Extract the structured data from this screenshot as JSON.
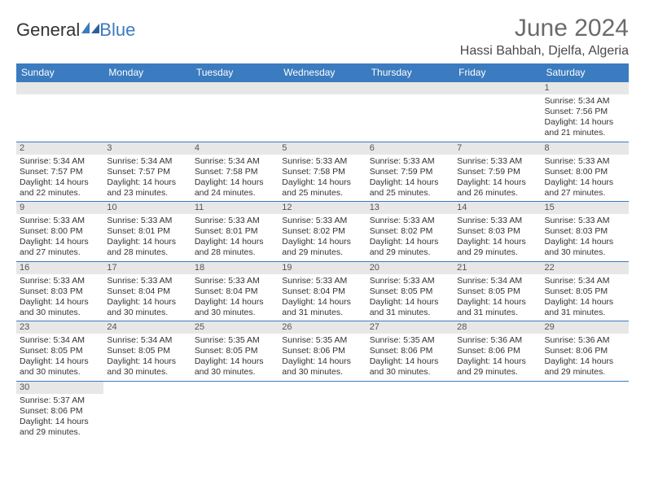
{
  "brand": {
    "part1": "General",
    "part2": "Blue"
  },
  "title": "June 2024",
  "location": "Hassi Bahbah, Djelfa, Algeria",
  "colors": {
    "header_bg": "#3b7bbf",
    "header_fg": "#ffffff",
    "daynum_bg": "#e7e7e7",
    "text": "#333333",
    "title": "#6b6b6b",
    "row_border": "#3b7bbf"
  },
  "weekdays": [
    "Sunday",
    "Monday",
    "Tuesday",
    "Wednesday",
    "Thursday",
    "Friday",
    "Saturday"
  ],
  "weeks": [
    [
      {
        "day": "",
        "sunrise": "",
        "sunset": "",
        "daylight1": "",
        "daylight2": ""
      },
      {
        "day": "",
        "sunrise": "",
        "sunset": "",
        "daylight1": "",
        "daylight2": ""
      },
      {
        "day": "",
        "sunrise": "",
        "sunset": "",
        "daylight1": "",
        "daylight2": ""
      },
      {
        "day": "",
        "sunrise": "",
        "sunset": "",
        "daylight1": "",
        "daylight2": ""
      },
      {
        "day": "",
        "sunrise": "",
        "sunset": "",
        "daylight1": "",
        "daylight2": ""
      },
      {
        "day": "",
        "sunrise": "",
        "sunset": "",
        "daylight1": "",
        "daylight2": ""
      },
      {
        "day": "1",
        "sunrise": "Sunrise: 5:34 AM",
        "sunset": "Sunset: 7:56 PM",
        "daylight1": "Daylight: 14 hours",
        "daylight2": "and 21 minutes."
      }
    ],
    [
      {
        "day": "2",
        "sunrise": "Sunrise: 5:34 AM",
        "sunset": "Sunset: 7:57 PM",
        "daylight1": "Daylight: 14 hours",
        "daylight2": "and 22 minutes."
      },
      {
        "day": "3",
        "sunrise": "Sunrise: 5:34 AM",
        "sunset": "Sunset: 7:57 PM",
        "daylight1": "Daylight: 14 hours",
        "daylight2": "and 23 minutes."
      },
      {
        "day": "4",
        "sunrise": "Sunrise: 5:34 AM",
        "sunset": "Sunset: 7:58 PM",
        "daylight1": "Daylight: 14 hours",
        "daylight2": "and 24 minutes."
      },
      {
        "day": "5",
        "sunrise": "Sunrise: 5:33 AM",
        "sunset": "Sunset: 7:58 PM",
        "daylight1": "Daylight: 14 hours",
        "daylight2": "and 25 minutes."
      },
      {
        "day": "6",
        "sunrise": "Sunrise: 5:33 AM",
        "sunset": "Sunset: 7:59 PM",
        "daylight1": "Daylight: 14 hours",
        "daylight2": "and 25 minutes."
      },
      {
        "day": "7",
        "sunrise": "Sunrise: 5:33 AM",
        "sunset": "Sunset: 7:59 PM",
        "daylight1": "Daylight: 14 hours",
        "daylight2": "and 26 minutes."
      },
      {
        "day": "8",
        "sunrise": "Sunrise: 5:33 AM",
        "sunset": "Sunset: 8:00 PM",
        "daylight1": "Daylight: 14 hours",
        "daylight2": "and 27 minutes."
      }
    ],
    [
      {
        "day": "9",
        "sunrise": "Sunrise: 5:33 AM",
        "sunset": "Sunset: 8:00 PM",
        "daylight1": "Daylight: 14 hours",
        "daylight2": "and 27 minutes."
      },
      {
        "day": "10",
        "sunrise": "Sunrise: 5:33 AM",
        "sunset": "Sunset: 8:01 PM",
        "daylight1": "Daylight: 14 hours",
        "daylight2": "and 28 minutes."
      },
      {
        "day": "11",
        "sunrise": "Sunrise: 5:33 AM",
        "sunset": "Sunset: 8:01 PM",
        "daylight1": "Daylight: 14 hours",
        "daylight2": "and 28 minutes."
      },
      {
        "day": "12",
        "sunrise": "Sunrise: 5:33 AM",
        "sunset": "Sunset: 8:02 PM",
        "daylight1": "Daylight: 14 hours",
        "daylight2": "and 29 minutes."
      },
      {
        "day": "13",
        "sunrise": "Sunrise: 5:33 AM",
        "sunset": "Sunset: 8:02 PM",
        "daylight1": "Daylight: 14 hours",
        "daylight2": "and 29 minutes."
      },
      {
        "day": "14",
        "sunrise": "Sunrise: 5:33 AM",
        "sunset": "Sunset: 8:03 PM",
        "daylight1": "Daylight: 14 hours",
        "daylight2": "and 29 minutes."
      },
      {
        "day": "15",
        "sunrise": "Sunrise: 5:33 AM",
        "sunset": "Sunset: 8:03 PM",
        "daylight1": "Daylight: 14 hours",
        "daylight2": "and 30 minutes."
      }
    ],
    [
      {
        "day": "16",
        "sunrise": "Sunrise: 5:33 AM",
        "sunset": "Sunset: 8:03 PM",
        "daylight1": "Daylight: 14 hours",
        "daylight2": "and 30 minutes."
      },
      {
        "day": "17",
        "sunrise": "Sunrise: 5:33 AM",
        "sunset": "Sunset: 8:04 PM",
        "daylight1": "Daylight: 14 hours",
        "daylight2": "and 30 minutes."
      },
      {
        "day": "18",
        "sunrise": "Sunrise: 5:33 AM",
        "sunset": "Sunset: 8:04 PM",
        "daylight1": "Daylight: 14 hours",
        "daylight2": "and 30 minutes."
      },
      {
        "day": "19",
        "sunrise": "Sunrise: 5:33 AM",
        "sunset": "Sunset: 8:04 PM",
        "daylight1": "Daylight: 14 hours",
        "daylight2": "and 31 minutes."
      },
      {
        "day": "20",
        "sunrise": "Sunrise: 5:33 AM",
        "sunset": "Sunset: 8:05 PM",
        "daylight1": "Daylight: 14 hours",
        "daylight2": "and 31 minutes."
      },
      {
        "day": "21",
        "sunrise": "Sunrise: 5:34 AM",
        "sunset": "Sunset: 8:05 PM",
        "daylight1": "Daylight: 14 hours",
        "daylight2": "and 31 minutes."
      },
      {
        "day": "22",
        "sunrise": "Sunrise: 5:34 AM",
        "sunset": "Sunset: 8:05 PM",
        "daylight1": "Daylight: 14 hours",
        "daylight2": "and 31 minutes."
      }
    ],
    [
      {
        "day": "23",
        "sunrise": "Sunrise: 5:34 AM",
        "sunset": "Sunset: 8:05 PM",
        "daylight1": "Daylight: 14 hours",
        "daylight2": "and 30 minutes."
      },
      {
        "day": "24",
        "sunrise": "Sunrise: 5:34 AM",
        "sunset": "Sunset: 8:05 PM",
        "daylight1": "Daylight: 14 hours",
        "daylight2": "and 30 minutes."
      },
      {
        "day": "25",
        "sunrise": "Sunrise: 5:35 AM",
        "sunset": "Sunset: 8:05 PM",
        "daylight1": "Daylight: 14 hours",
        "daylight2": "and 30 minutes."
      },
      {
        "day": "26",
        "sunrise": "Sunrise: 5:35 AM",
        "sunset": "Sunset: 8:06 PM",
        "daylight1": "Daylight: 14 hours",
        "daylight2": "and 30 minutes."
      },
      {
        "day": "27",
        "sunrise": "Sunrise: 5:35 AM",
        "sunset": "Sunset: 8:06 PM",
        "daylight1": "Daylight: 14 hours",
        "daylight2": "and 30 minutes."
      },
      {
        "day": "28",
        "sunrise": "Sunrise: 5:36 AM",
        "sunset": "Sunset: 8:06 PM",
        "daylight1": "Daylight: 14 hours",
        "daylight2": "and 29 minutes."
      },
      {
        "day": "29",
        "sunrise": "Sunrise: 5:36 AM",
        "sunset": "Sunset: 8:06 PM",
        "daylight1": "Daylight: 14 hours",
        "daylight2": "and 29 minutes."
      }
    ],
    [
      {
        "day": "30",
        "sunrise": "Sunrise: 5:37 AM",
        "sunset": "Sunset: 8:06 PM",
        "daylight1": "Daylight: 14 hours",
        "daylight2": "and 29 minutes."
      },
      {
        "day": "",
        "sunrise": "",
        "sunset": "",
        "daylight1": "",
        "daylight2": ""
      },
      {
        "day": "",
        "sunrise": "",
        "sunset": "",
        "daylight1": "",
        "daylight2": ""
      },
      {
        "day": "",
        "sunrise": "",
        "sunset": "",
        "daylight1": "",
        "daylight2": ""
      },
      {
        "day": "",
        "sunrise": "",
        "sunset": "",
        "daylight1": "",
        "daylight2": ""
      },
      {
        "day": "",
        "sunrise": "",
        "sunset": "",
        "daylight1": "",
        "daylight2": ""
      },
      {
        "day": "",
        "sunrise": "",
        "sunset": "",
        "daylight1": "",
        "daylight2": ""
      }
    ]
  ]
}
